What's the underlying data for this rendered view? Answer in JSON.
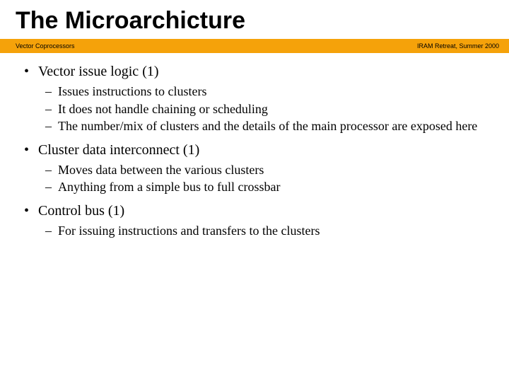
{
  "title": "The Microarchicture",
  "banner": {
    "left": "Vector Coprocessors",
    "right": "IRAM Retreat, Summer 2000",
    "background_color": "#f5a20a",
    "left_color": "#000000",
    "right_color": "#000000"
  },
  "body": {
    "text_color": "#000000",
    "title_fontsize": 34,
    "bullet_fontsize": 20,
    "subbullet_fontsize": 18,
    "items": [
      {
        "text": "Vector issue logic (1)",
        "sub": [
          "Issues instructions to clusters",
          "It does not handle chaining or scheduling",
          "The number/mix of clusters and the details of the main processor are exposed here"
        ]
      },
      {
        "text": "Cluster data interconnect (1)",
        "sub": [
          "Moves data between the various clusters",
          "Anything from a simple bus to full crossbar"
        ]
      },
      {
        "text": "Control bus (1)",
        "sub": [
          "For issuing instructions and transfers to the clusters"
        ]
      }
    ]
  }
}
